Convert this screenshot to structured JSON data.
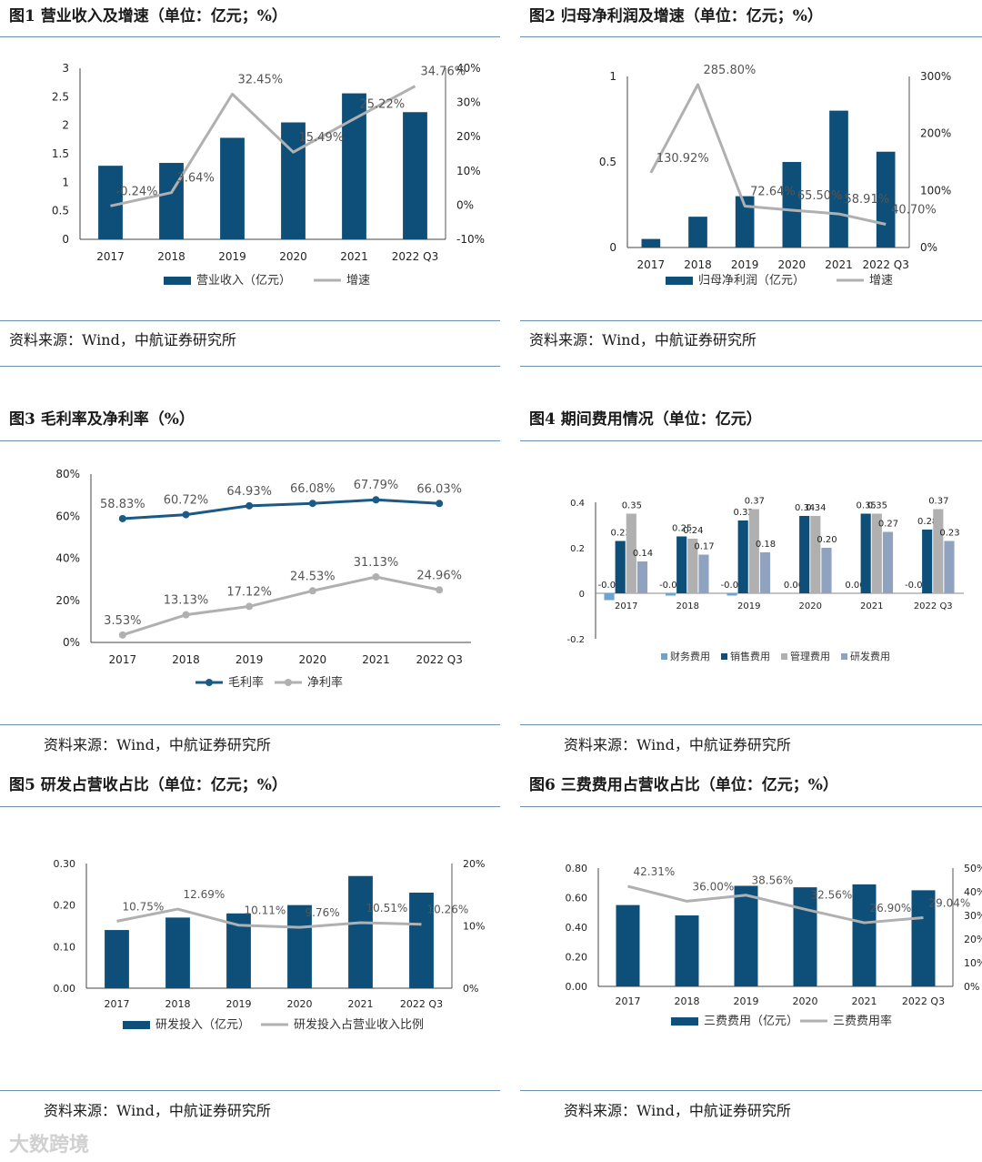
{
  "watermark": "大数跨境",
  "source_text": "资料来源：Wind，中航证券研究所",
  "colors": {
    "bar": "#0d4f78",
    "line_gray": "#b0b0b0",
    "gross": "#1a5a84",
    "fin": "#6aa4cf",
    "sales": "#0d4f78",
    "mgmt": "#b0b0b0",
    "rd": "#8fa3c0"
  },
  "chart_data": [
    {
      "id": "fig1",
      "type": "bar+line",
      "title": "图1  营业收入及增速（单位：亿元；%）",
      "categories": [
        "2017",
        "2018",
        "2019",
        "2020",
        "2021",
        "2022 Q3"
      ],
      "series": [
        {
          "name": "营业收入（亿元）",
          "kind": "bar",
          "axis": "left",
          "values": [
            1.29,
            1.34,
            1.78,
            2.05,
            2.56,
            2.23
          ]
        },
        {
          "name": "增速",
          "kind": "line",
          "axis": "right",
          "values": [
            -0.24,
            3.64,
            32.45,
            15.49,
            25.22,
            34.76
          ],
          "labels": [
            "-0.24%",
            "3.64%",
            "32.45%",
            "15.49%",
            "25.22%",
            "34.76%"
          ]
        }
      ],
      "left_ticks": [
        "0",
        "0.5",
        "1",
        "1.5",
        "2",
        "2.5",
        "3"
      ],
      "ylim": [
        0,
        3
      ],
      "right_ticks": [
        "-10%",
        "0%",
        "10%",
        "20%",
        "30%",
        "40%"
      ],
      "y2lim": [
        -10,
        40
      ]
    },
    {
      "id": "fig2",
      "type": "bar+line",
      "title": "图2  归母净利润及增速（单位：亿元；%）",
      "categories": [
        "2017",
        "2018",
        "2019",
        "2020",
        "2021",
        "2022 Q3"
      ],
      "series": [
        {
          "name": "归母净利润（亿元）",
          "kind": "bar",
          "axis": "left",
          "values": [
            0.05,
            0.18,
            0.3,
            0.5,
            0.8,
            0.56
          ]
        },
        {
          "name": "增速",
          "kind": "line",
          "axis": "right",
          "values": [
            130.92,
            285.8,
            72.64,
            65.5,
            58.91,
            40.7
          ],
          "labels": [
            "130.92%",
            "285.80%",
            "72.64%",
            "65.50%",
            "58.91%",
            "40.70%"
          ]
        }
      ],
      "left_ticks": [
        "0",
        "0.5",
        "1"
      ],
      "ylim": [
        0,
        1
      ],
      "right_ticks": [
        "0%",
        "100%",
        "200%",
        "300%"
      ],
      "y2lim": [
        0,
        300
      ]
    },
    {
      "id": "fig3",
      "type": "line",
      "title": "图3  毛利率及净利率（%）",
      "categories": [
        "2017",
        "2018",
        "2019",
        "2020",
        "2021",
        "2022 Q3"
      ],
      "series": [
        {
          "name": "毛利率",
          "kind": "line",
          "axis": "left",
          "values": [
            58.83,
            60.72,
            64.93,
            66.08,
            67.79,
            66.03
          ],
          "labels": [
            "58.83%",
            "60.72%",
            "64.93%",
            "66.08%",
            "67.79%",
            "66.03%"
          ]
        },
        {
          "name": "净利率",
          "kind": "line",
          "axis": "left",
          "values": [
            3.53,
            13.13,
            17.12,
            24.53,
            31.13,
            24.96
          ],
          "labels": [
            "3.53%",
            "13.13%",
            "17.12%",
            "24.53%",
            "31.13%",
            "24.96%"
          ]
        }
      ],
      "left_ticks": [
        "0%",
        "20%",
        "40%",
        "60%",
        "80%"
      ],
      "ylim": [
        0,
        80
      ]
    },
    {
      "id": "fig4",
      "type": "grouped-bar",
      "title": "图4  期间费用情况（单位：亿元）",
      "categories": [
        "2017",
        "2018",
        "2019",
        "2020",
        "2021",
        "2022 Q3"
      ],
      "series": [
        {
          "name": "财务费用",
          "values": [
            -0.03,
            -0.01,
            -0.01,
            0.0,
            0.0,
            -0.0
          ],
          "labels": [
            "-0.03",
            "-0.01",
            "-0.01",
            "0.00",
            "0.00",
            "-0.00"
          ]
        },
        {
          "name": "销售费用",
          "values": [
            0.23,
            0.25,
            0.32,
            0.34,
            0.35,
            0.28
          ],
          "labels": [
            "0.23",
            "0.25",
            "0.32",
            "0.34",
            "0.35",
            "0.28"
          ]
        },
        {
          "name": "管理费用",
          "values": [
            0.35,
            0.24,
            0.37,
            0.34,
            0.35,
            0.37
          ],
          "labels": [
            "0.35",
            "0.24",
            "0.37",
            "0.34",
            "0.35",
            "0.37"
          ]
        },
        {
          "name": "研发费用",
          "values": [
            0.14,
            0.17,
            0.18,
            0.2,
            0.27,
            0.23
          ],
          "labels": [
            "0.14",
            "0.17",
            "0.18",
            "0.20",
            "0.27",
            "0.23"
          ]
        }
      ],
      "left_ticks": [
        "-0.2",
        "0",
        "0.2",
        "0.4"
      ],
      "ylim": [
        -0.2,
        0.4
      ]
    },
    {
      "id": "fig5",
      "type": "bar+line",
      "title": "图5  研发占营收占比（单位：亿元；%）",
      "categories": [
        "2017",
        "2018",
        "2019",
        "2020",
        "2021",
        "2022 Q3"
      ],
      "series": [
        {
          "name": "研发投入（亿元）",
          "kind": "bar",
          "axis": "left",
          "values": [
            0.14,
            0.17,
            0.18,
            0.2,
            0.27,
            0.23
          ]
        },
        {
          "name": "研发投入占营业收入比例",
          "kind": "line",
          "axis": "right",
          "values": [
            10.75,
            12.69,
            10.11,
            9.76,
            10.51,
            10.26
          ],
          "labels": [
            "10.75%",
            "12.69%",
            "10.11%",
            "9.76%",
            "10.51%",
            "10.26%"
          ]
        }
      ],
      "left_ticks": [
        "0.00",
        "0.10",
        "0.20",
        "0.30"
      ],
      "ylim": [
        0,
        0.3
      ],
      "right_ticks": [
        "0%",
        "10%",
        "20%"
      ],
      "y2lim": [
        0,
        20
      ]
    },
    {
      "id": "fig6",
      "type": "bar+line",
      "title": "图6  三费费用占营收占比（单位：亿元；%）",
      "categories": [
        "2017",
        "2018",
        "2019",
        "2020",
        "2021",
        "2022 Q3"
      ],
      "series": [
        {
          "name": "三费费用（亿元）",
          "kind": "bar",
          "axis": "left",
          "values": [
            0.55,
            0.48,
            0.68,
            0.67,
            0.69,
            0.65
          ]
        },
        {
          "name": "三费费用率",
          "kind": "line",
          "axis": "right",
          "values": [
            42.31,
            36.0,
            38.56,
            32.56,
            26.9,
            29.04
          ],
          "labels": [
            "42.31%",
            "36.00%",
            "38.56%",
            "32.56%",
            "26.90%",
            "29.04%"
          ]
        }
      ],
      "left_ticks": [
        "0.00",
        "0.20",
        "0.40",
        "0.60",
        "0.80"
      ],
      "ylim": [
        0,
        0.8
      ],
      "right_ticks": [
        "0%",
        "10%",
        "20%",
        "30%",
        "40%",
        "50%"
      ],
      "y2lim": [
        0,
        50
      ]
    }
  ]
}
